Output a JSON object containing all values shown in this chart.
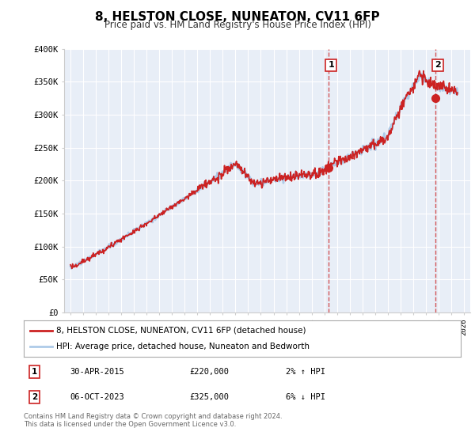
{
  "title": "8, HELSTON CLOSE, NUNEATON, CV11 6FP",
  "subtitle": "Price paid vs. HM Land Registry's House Price Index (HPI)",
  "ylim": [
    0,
    400000
  ],
  "xlim_min": 1994.5,
  "xlim_max": 2026.5,
  "yticks": [
    0,
    50000,
    100000,
    150000,
    200000,
    250000,
    300000,
    350000,
    400000
  ],
  "ytick_labels": [
    "£0",
    "£50K",
    "£100K",
    "£150K",
    "£200K",
    "£250K",
    "£300K",
    "£350K",
    "£400K"
  ],
  "xticks": [
    1995,
    1996,
    1997,
    1998,
    1999,
    2000,
    2001,
    2002,
    2003,
    2004,
    2005,
    2006,
    2007,
    2008,
    2009,
    2010,
    2011,
    2012,
    2013,
    2014,
    2015,
    2016,
    2017,
    2018,
    2019,
    2020,
    2021,
    2022,
    2023,
    2024,
    2025,
    2026
  ],
  "hpi_color": "#aecbe8",
  "price_color": "#cc2222",
  "bg_color": "#ffffff",
  "plot_bg_color": "#e8eef7",
  "grid_color": "#ffffff",
  "marker1_date": 2015.33,
  "marker1_value": 220000,
  "marker2_date": 2023.75,
  "marker2_value": 325000,
  "vline1_x": 2015.33,
  "vline2_x": 2023.75,
  "legend_line1": "8, HELSTON CLOSE, NUNEATON, CV11 6FP (detached house)",
  "legend_line2": "HPI: Average price, detached house, Nuneaton and Bedworth",
  "table_row1": [
    "1",
    "30-APR-2015",
    "£220,000",
    "2% ↑ HPI"
  ],
  "table_row2": [
    "2",
    "06-OCT-2023",
    "£325,000",
    "6% ↓ HPI"
  ],
  "footer_line1": "Contains HM Land Registry data © Crown copyright and database right 2024.",
  "footer_line2": "This data is licensed under the Open Government Licence v3.0."
}
